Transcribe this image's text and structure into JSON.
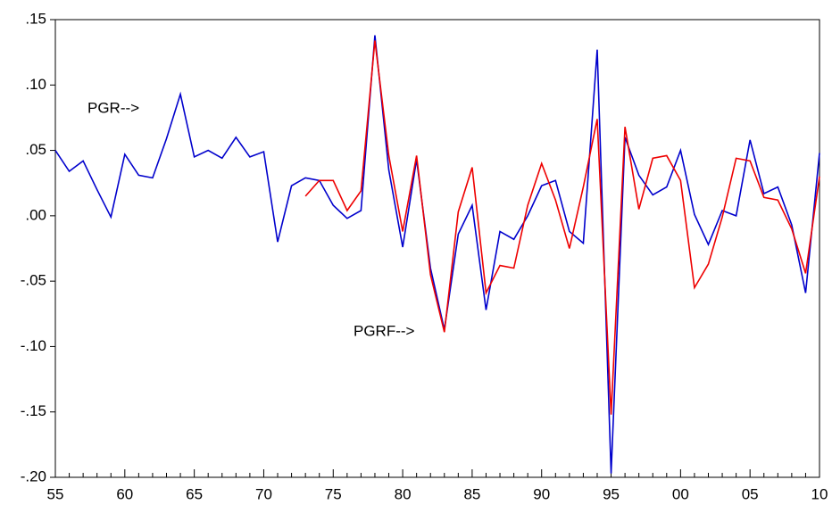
{
  "chart_data": {
    "type": "line",
    "categories": [
      "55",
      null,
      null,
      null,
      null,
      "60",
      null,
      null,
      null,
      null,
      "65",
      null,
      null,
      null,
      null,
      "70",
      null,
      null,
      null,
      null,
      "75",
      null,
      null,
      null,
      null,
      "80",
      null,
      null,
      null,
      null,
      "85",
      null,
      null,
      null,
      null,
      "90",
      null,
      null,
      null,
      null,
      "95",
      null,
      null,
      null,
      null,
      "00",
      null,
      null,
      null,
      null,
      "05",
      null,
      null,
      null,
      null,
      "10"
    ],
    "series": [
      {
        "name": "PGR",
        "color": "#0000cc",
        "values": [
          0.05,
          0.034,
          0.042,
          0.02,
          -0.001,
          0.047,
          0.031,
          0.029,
          0.059,
          0.093,
          0.045,
          0.05,
          0.044,
          0.06,
          0.045,
          0.049,
          -0.02,
          0.023,
          0.029,
          0.027,
          0.008,
          -0.002,
          0.004,
          0.138,
          0.035,
          -0.024,
          0.043,
          -0.04,
          -0.087,
          -0.014,
          0.008,
          -0.072,
          -0.012,
          -0.018,
          0.0,
          0.023,
          0.027,
          -0.012,
          -0.021,
          0.127,
          -0.197,
          0.06,
          0.031,
          0.016,
          0.022,
          0.05,
          0.001,
          -0.022,
          0.004,
          0.0,
          0.058,
          0.017,
          0.022,
          -0.007,
          -0.059,
          0.048
        ]
      },
      {
        "name": "PGRF",
        "color": "#ee0000",
        "values": [
          null,
          null,
          null,
          null,
          null,
          null,
          null,
          null,
          null,
          null,
          null,
          null,
          null,
          null,
          null,
          null,
          null,
          null,
          0.015,
          0.027,
          0.027,
          0.004,
          0.019,
          0.134,
          0.046,
          -0.012,
          0.046,
          -0.045,
          -0.089,
          0.003,
          0.037,
          -0.059,
          -0.038,
          -0.04,
          0.008,
          0.04,
          0.012,
          -0.025,
          0.022,
          0.074,
          -0.152,
          0.068,
          0.005,
          0.044,
          0.046,
          0.027,
          -0.055,
          -0.037,
          -0.001,
          0.044,
          0.042,
          0.014,
          0.012,
          -0.01,
          -0.044,
          0.03
        ]
      }
    ],
    "annotations": [
      "PGR-->",
      "PGRF-->"
    ],
    "ylim": [
      -0.2,
      0.15
    ],
    "yticks": [
      {
        "value": 0.15,
        "label": ".15"
      },
      {
        "value": 0.1,
        "label": ".10"
      },
      {
        "value": 0.05,
        "label": ".05"
      },
      {
        "value": 0.0,
        "label": ".00"
      },
      {
        "value": -0.05,
        "label": "-.05"
      },
      {
        "value": -0.1,
        "label": "-.10"
      },
      {
        "value": -0.15,
        "label": "-.15"
      },
      {
        "value": -0.2,
        "label": "-.20"
      }
    ]
  }
}
